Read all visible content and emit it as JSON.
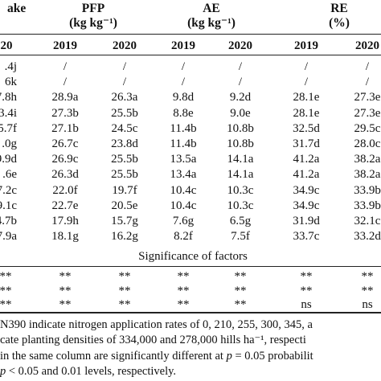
{
  "header": {
    "col0_label": "ake",
    "pfp": {
      "label": "PFP",
      "unit": "(kg kg⁻¹)"
    },
    "ae": {
      "label": "AE",
      "unit": "(kg kg⁻¹)"
    },
    "re": {
      "label": "RE",
      "unit": "(%)"
    }
  },
  "years": {
    "col0": "20",
    "pfp_a": "2019",
    "pfp_b": "2020",
    "ae_a": "2019",
    "ae_b": "2020",
    "re_a": "2019",
    "re_b": "2020"
  },
  "rows": [
    {
      "uptake": ".4j",
      "pfp2019": "/",
      "pfp2020": "/",
      "ae2019": "/",
      "ae2020": "/",
      "re2019": "/",
      "re2020": "/"
    },
    {
      "uptake": "6k",
      "pfp2019": "/",
      "pfp2020": "/",
      "ae2019": "/",
      "ae2020": "/",
      "re2019": "/",
      "re2020": "/"
    },
    {
      "uptake": "7.8h",
      "pfp2019": "28.9a",
      "pfp2020": "26.3a",
      "ae2019": "9.8d",
      "ae2020": "9.2d",
      "re2019": "28.1e",
      "re2020": "27.3e"
    },
    {
      "uptake": "3.4i",
      "pfp2019": "27.3b",
      "pfp2020": "25.5b",
      "ae2019": "8.8e",
      "ae2020": "9.0e",
      "re2019": "28.1e",
      "re2020": "27.3e"
    },
    {
      "uptake": "5.7f",
      "pfp2019": "27.1b",
      "pfp2020": "24.5c",
      "ae2019": "11.4b",
      "ae2020": "10.8b",
      "re2019": "32.5d",
      "re2020": "29.5c"
    },
    {
      "uptake": ".0g",
      "pfp2019": "26.7c",
      "pfp2020": "23.8d",
      "ae2019": "11.4b",
      "ae2020": "10.8b",
      "re2019": "31.7d",
      "re2020": "28.0c"
    },
    {
      "uptake": "9.9d",
      "pfp2019": "26.9c",
      "pfp2020": "25.5b",
      "ae2019": "13.5a",
      "ae2020": "14.1a",
      "re2019": "41.2a",
      "re2020": "38.2a"
    },
    {
      "uptake": ".6e",
      "pfp2019": "26.3d",
      "pfp2020": "25.5b",
      "ae2019": "13.4a",
      "ae2020": "14.1a",
      "re2019": "41.2a",
      "re2020": "38.2a"
    },
    {
      "uptake": "7.2c",
      "pfp2019": "22.0f",
      "pfp2020": "19.7f",
      "ae2019": "10.4c",
      "ae2020": "10.3c",
      "re2019": "34.9c",
      "re2020": "33.9b"
    },
    {
      "uptake": "9.1c",
      "pfp2019": "22.7e",
      "pfp2020": "20.5e",
      "ae2019": "10.4c",
      "ae2020": "10.3c",
      "re2019": "34.9c",
      "re2020": "33.9b"
    },
    {
      "uptake": "4.7b",
      "pfp2019": "17.9h",
      "pfp2020": "15.7g",
      "ae2019": "7.6g",
      "ae2020": "6.5g",
      "re2019": "31.9d",
      "re2020": "32.1c"
    },
    {
      "uptake": "7.9a",
      "pfp2019": "18.1g",
      "pfp2020": "16.2g",
      "ae2019": "8.2f",
      "ae2020": "7.5f",
      "re2019": "33.7c",
      "re2020": "33.2d"
    }
  ],
  "significance": {
    "title": "Significance of factors",
    "rows": [
      {
        "c0": "**",
        "pfp2019": "**",
        "pfp2020": "**",
        "ae2019": "**",
        "ae2020": "**",
        "re2019": "**",
        "re2020": "**"
      },
      {
        "c0": "**",
        "pfp2019": "**",
        "pfp2020": "**",
        "ae2019": "**",
        "ae2020": "**",
        "re2019": "**",
        "re2020": "**"
      },
      {
        "c0": "**",
        "pfp2019": "**",
        "pfp2020": "**",
        "ae2019": "**",
        "ae2020": "**",
        "re2019": "ns",
        "re2020": "ns"
      }
    ]
  },
  "notes": [
    "N390 indicate nitrogen application rates of 0, 210, 255, 300, 345, a",
    "cate planting densities of 334,000 and 278,000 hills ha⁻¹, respecti",
    "in the same column are significantly different at p = 0.05 probabilit",
    "p < 0.05 and 0.01 levels, respectively."
  ]
}
